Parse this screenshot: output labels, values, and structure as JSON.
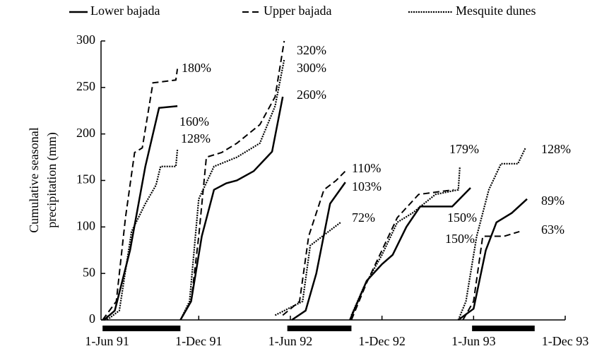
{
  "chart_data": {
    "type": "line",
    "y_label": [
      "Cumulative seasonal",
      "precipitation (mm)"
    ],
    "xlim": [
      -0.4,
      30
    ],
    "xticks": [
      {
        "value": 0,
        "label": "1-Jun 91"
      },
      {
        "value": 6,
        "label": "1-Dec 91"
      },
      {
        "value": 12,
        "label": "1-Jun 92"
      },
      {
        "value": 18,
        "label": "1-Dec 92"
      },
      {
        "value": 24,
        "label": "1-Jun 93"
      },
      {
        "value": 30,
        "label": "1-Dec 93"
      }
    ],
    "ylim": [
      0,
      300
    ],
    "yticks": [
      0,
      50,
      100,
      150,
      200,
      250,
      300
    ],
    "season_bars": [
      {
        "start": -0.3,
        "end": 4.8
      },
      {
        "start": 11.8,
        "end": 16
      },
      {
        "start": 23.9,
        "end": 28
      }
    ],
    "series": [
      {
        "name": "Lower bajada",
        "color": "#000000",
        "style": "solid",
        "x": [
          -0.2,
          0.5,
          1.5,
          2.5,
          3.4,
          4.6,
          null,
          4.8,
          5.5,
          6.2,
          7,
          7.8,
          8.5,
          9.6,
          10.8,
          11.5,
          null,
          12.1,
          13,
          13.7,
          14.6,
          15.6,
          null,
          15.9,
          17,
          18,
          18.7,
          19.6,
          20.5,
          22.6,
          23.8,
          null,
          23,
          24,
          24.8,
          25.5,
          26.5,
          27.5
        ],
        "values": [
          0,
          10,
          75,
          165,
          228,
          230,
          null,
          0,
          20,
          90,
          140,
          147,
          150,
          160,
          181,
          240,
          null,
          0,
          10,
          50,
          125,
          148,
          null,
          0,
          42,
          60,
          70,
          100,
          122,
          122,
          142,
          null,
          0,
          12,
          75,
          105,
          115,
          130
        ]
      },
      {
        "name": "Upper bajada",
        "color": "#000000",
        "style": "dashed",
        "x": [
          -0.3,
          0.6,
          1.2,
          1.8,
          2.3,
          3,
          4.5,
          4.6,
          null,
          4.8,
          5.5,
          6,
          6.5,
          7.5,
          8.5,
          10,
          11,
          11.6,
          null,
          11.5,
          12.6,
          13.2,
          14.2,
          15,
          15.6,
          null,
          16,
          17,
          18,
          19,
          20.4,
          22.7,
          null,
          23.3,
          24,
          24.6,
          26,
          27
        ],
        "values": [
          0,
          20,
          110,
          180,
          185,
          255,
          258,
          270,
          null,
          0,
          20,
          90,
          175,
          180,
          190,
          210,
          240,
          300,
          null,
          5,
          20,
          90,
          140,
          150,
          160,
          null,
          0,
          40,
          75,
          110,
          135,
          140,
          null,
          0,
          20,
          90,
          90,
          95
        ]
      },
      {
        "name": "Mesquite dunes",
        "color": "#000000",
        "style": "dotted",
        "x": [
          0,
          0.8,
          1.6,
          2.5,
          3.2,
          3.5,
          4.5,
          4.6,
          null,
          4.8,
          5.4,
          6,
          7,
          8.5,
          10,
          11,
          11.6,
          null,
          11,
          12.8,
          13.3,
          14.5,
          15.3,
          null,
          16,
          16.8,
          18,
          19,
          20,
          21.5,
          23,
          23.1,
          null,
          23,
          23.5,
          24.2,
          25,
          25.8,
          26.9,
          27.4
        ],
        "values": [
          0,
          10,
          95,
          125,
          145,
          165,
          165,
          183,
          null,
          0,
          20,
          130,
          165,
          175,
          190,
          230,
          280,
          null,
          5,
          20,
          80,
          95,
          105,
          null,
          5,
          35,
          70,
          105,
          115,
          135,
          140,
          165,
          null,
          0,
          20,
          90,
          140,
          168,
          168,
          185
        ]
      }
    ],
    "annotations": [
      "180%",
      "160%",
      "128%",
      "320%",
      "300%",
      "260%",
      "110%",
      "103%",
      "72%",
      "179%",
      "150%",
      "150%",
      "128%",
      "89%",
      "63%"
    ]
  }
}
